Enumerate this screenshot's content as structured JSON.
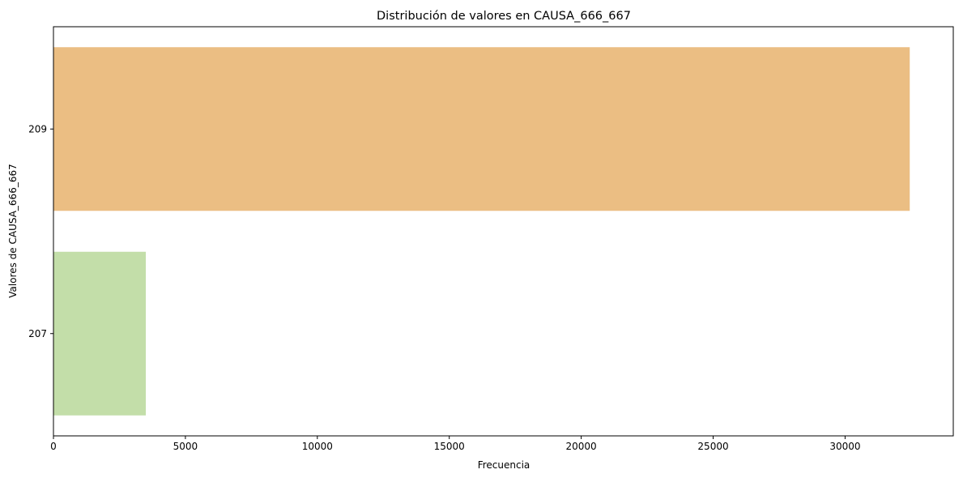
{
  "chart_data": {
    "type": "bar",
    "orientation": "horizontal",
    "title": "Distribución de valores en CAUSA_666_667",
    "xlabel": "Frecuencia",
    "ylabel": "Valores de CAUSA_666_667",
    "categories": [
      "209",
      "207"
    ],
    "values": [
      32450,
      3500
    ],
    "colors": [
      "#ebbe83",
      "#c3dea9"
    ],
    "xlim": [
      0,
      34100
    ],
    "xticks": [
      0,
      5000,
      10000,
      15000,
      20000,
      25000,
      30000
    ],
    "xtick_labels": [
      "0",
      "5000",
      "10000",
      "15000",
      "20000",
      "25000",
      "30000"
    ],
    "grid": false,
    "legend": "none"
  }
}
